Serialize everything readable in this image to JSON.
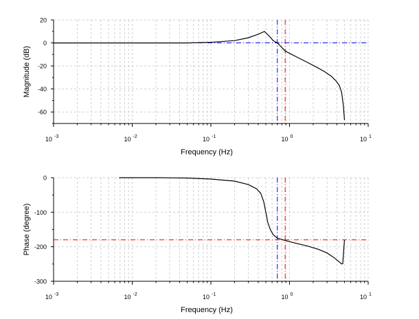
{
  "chart_data": [
    {
      "type": "line",
      "xlabel": "Frequency (Hz)",
      "ylabel": "Magnitude (dB)",
      "xscale": "log",
      "xlim": [
        0.001,
        10
      ],
      "ylim": [
        -70,
        20
      ],
      "yticks": [
        20,
        0,
        -20,
        -40,
        -60
      ],
      "xticks": [
        "-3",
        "-2",
        "-1",
        "0",
        "1"
      ],
      "xtick_base": "10",
      "grid": true,
      "series": [
        {
          "color": "#000000",
          "x": [
            0.001,
            0.01,
            0.05,
            0.1,
            0.2,
            0.3,
            0.4,
            0.48,
            0.55,
            0.62,
            0.7,
            0.8,
            0.88,
            1.0,
            1.3,
            1.7,
            2.2,
            2.8,
            3.4,
            3.9,
            4.3,
            4.6,
            4.85,
            5.0
          ],
          "y": [
            0,
            0,
            0,
            0.5,
            2,
            4.5,
            7.5,
            10,
            6,
            2,
            0,
            -4,
            -7,
            -9,
            -13,
            -17,
            -21,
            -25,
            -29,
            -33,
            -37,
            -43,
            -55,
            -67
          ]
        }
      ],
      "reference_lines": [
        {
          "orientation": "horizontal",
          "value": 0,
          "color": "#0000ff",
          "style": "dash-dot"
        },
        {
          "orientation": "vertical",
          "value": 0.7,
          "color": "#0000ff",
          "style": "dash-dot"
        },
        {
          "orientation": "vertical",
          "value": 0.88,
          "color": "#ff0000",
          "style": "dash-dot"
        }
      ]
    },
    {
      "type": "line",
      "xlabel": "Frequency (Hz)",
      "ylabel": "Phase (degree)",
      "xscale": "log",
      "xlim": [
        0.001,
        10
      ],
      "ylim": [
        -300,
        0
      ],
      "yticks": [
        0,
        -100,
        -200,
        -300
      ],
      "xticks": [
        "-3",
        "-2",
        "-1",
        "0",
        "1"
      ],
      "xtick_base": "10",
      "grid": true,
      "series": [
        {
          "color": "#000000",
          "x": [
            0.0068,
            0.02,
            0.05,
            0.1,
            0.2,
            0.3,
            0.38,
            0.43,
            0.47,
            0.5,
            0.53,
            0.57,
            0.62,
            0.7,
            0.88,
            1.2,
            1.7,
            2.3,
            3.0,
            3.7,
            4.3,
            4.6,
            4.75,
            5.0
          ],
          "y": [
            0,
            0,
            -1,
            -4,
            -10,
            -20,
            -32,
            -45,
            -70,
            -100,
            -130,
            -150,
            -165,
            -175,
            -182,
            -190,
            -198,
            -207,
            -218,
            -232,
            -244,
            -250,
            -249,
            -180
          ]
        }
      ],
      "reference_lines": [
        {
          "orientation": "horizontal",
          "value": -180,
          "color": "#ff0000",
          "style": "dash-dot"
        },
        {
          "orientation": "vertical",
          "value": 0.7,
          "color": "#0000ff",
          "style": "dash-dot"
        },
        {
          "orientation": "vertical",
          "value": 0.88,
          "color": "#ff0000",
          "style": "dash-dot"
        }
      ]
    }
  ]
}
